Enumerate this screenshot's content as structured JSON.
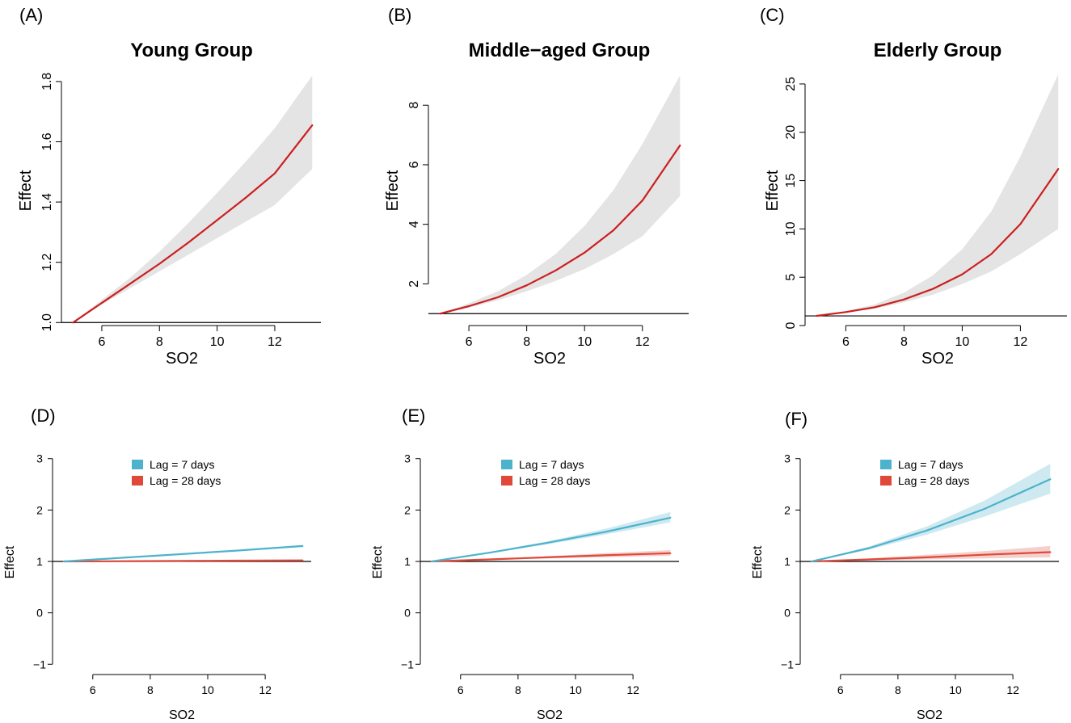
{
  "colors": {
    "effect_line": "#cc1f1f",
    "ci_band": "#e4e4e4",
    "lag7": "#4db3cc",
    "lag7_band": "#cfe9f1",
    "lag28": "#e0483a",
    "lag28_band": "#f4d0cc",
    "reference_line": "#000000"
  },
  "chart_data": [
    {
      "panel": "(A)",
      "type": "line",
      "title": "Young Group",
      "xlabel": "SO2",
      "ylabel": "Effect",
      "xlim": [
        4.6,
        13.6
      ],
      "ylim": [
        0.99,
        1.84
      ],
      "xticks": [
        6,
        8,
        10,
        12
      ],
      "xtick_labels": [
        "6",
        "8",
        "10",
        "12"
      ],
      "yticks": [
        1.0,
        1.2,
        1.4,
        1.6,
        1.8
      ],
      "ytick_labels": [
        "1.0",
        "1.2",
        "1.4",
        "1.6",
        "1.8"
      ],
      "reference_y": 1,
      "series": [
        {
          "name": "Effect",
          "color_key": "effect_line",
          "band_color_key": "ci_band",
          "x": [
            5,
            6,
            7,
            8,
            9,
            10,
            11,
            12,
            13.3
          ],
          "y": [
            1.0,
            1.065,
            1.13,
            1.195,
            1.265,
            1.34,
            1.415,
            1.495,
            1.655
          ],
          "lower": [
            1.0,
            1.06,
            1.115,
            1.17,
            1.225,
            1.28,
            1.335,
            1.39,
            1.51
          ],
          "upper": [
            1.0,
            1.075,
            1.15,
            1.235,
            1.33,
            1.43,
            1.535,
            1.645,
            1.82
          ]
        }
      ]
    },
    {
      "panel": "(B)",
      "type": "line",
      "title": "Middle−aged Group",
      "xlabel": "SO2",
      "ylabel": "Effect",
      "xlim": [
        4.6,
        13.6
      ],
      "ylim": [
        0.6,
        9.2
      ],
      "xticks": [
        6,
        8,
        10,
        12
      ],
      "xtick_labels": [
        "6",
        "8",
        "10",
        "12"
      ],
      "yticks": [
        2,
        4,
        6,
        8
      ],
      "ytick_labels": [
        "2",
        "4",
        "6",
        "8"
      ],
      "reference_y": 1,
      "series": [
        {
          "name": "Effect",
          "color_key": "effect_line",
          "band_color_key": "ci_band",
          "x": [
            5,
            6,
            7,
            8,
            9,
            10,
            11,
            12,
            13.3
          ],
          "y": [
            1.0,
            1.25,
            1.55,
            1.95,
            2.45,
            3.05,
            3.8,
            4.8,
            6.65
          ],
          "lower": [
            1.0,
            1.2,
            1.45,
            1.75,
            2.1,
            2.5,
            3.0,
            3.6,
            4.95
          ],
          "upper": [
            1.0,
            1.35,
            1.75,
            2.3,
            3.0,
            3.95,
            5.15,
            6.7,
            9.0
          ]
        }
      ]
    },
    {
      "panel": "(C)",
      "type": "line",
      "title": "Elderly Group",
      "xlabel": "SO2",
      "ylabel": "Effect",
      "xlim": [
        4.6,
        13.6
      ],
      "ylim": [
        0,
        26.5
      ],
      "xticks": [
        6,
        8,
        10,
        12
      ],
      "xtick_labels": [
        "6",
        "8",
        "10",
        "12"
      ],
      "yticks": [
        0,
        5,
        10,
        15,
        20,
        25
      ],
      "ytick_labels": [
        "0",
        "5",
        "10",
        "15",
        "20",
        "25"
      ],
      "reference_y": 1,
      "series": [
        {
          "name": "Effect",
          "color_key": "effect_line",
          "band_color_key": "ci_band",
          "x": [
            5,
            6,
            7,
            8,
            9,
            10,
            11,
            12,
            13.3
          ],
          "y": [
            1.0,
            1.4,
            1.9,
            2.7,
            3.8,
            5.3,
            7.4,
            10.5,
            16.2
          ],
          "lower": [
            1.0,
            1.35,
            1.75,
            2.4,
            3.2,
            4.3,
            5.6,
            7.4,
            10.0
          ],
          "upper": [
            1.0,
            1.5,
            2.2,
            3.4,
            5.2,
            7.9,
            11.8,
            17.5,
            26.0
          ]
        }
      ]
    },
    {
      "panel": "(D)",
      "type": "line",
      "title": "",
      "xlabel": "SO2",
      "ylabel": "Effect",
      "xlim": [
        4.6,
        13.6
      ],
      "ylim": [
        -1.2,
        3.2
      ],
      "xticks": [
        6,
        8,
        10,
        12
      ],
      "xtick_labels": [
        "6",
        "8",
        "10",
        "12"
      ],
      "yticks": [
        -1,
        0,
        1,
        2,
        3
      ],
      "ytick_labels": [
        "−1",
        "0",
        "1",
        "2",
        "3"
      ],
      "reference_y": 1,
      "legend": {
        "position": "top-center",
        "entries": [
          "Lag = 7 days",
          "Lag = 28 days"
        ]
      },
      "series": [
        {
          "name": "Lag = 7 days",
          "color_key": "lag7",
          "band_color_key": "lag7_band",
          "x": [
            5,
            7,
            9,
            11,
            13.3
          ],
          "y": [
            1.0,
            1.07,
            1.14,
            1.21,
            1.3
          ],
          "lower": [
            1.0,
            1.065,
            1.13,
            1.2,
            1.28
          ],
          "upper": [
            1.0,
            1.075,
            1.15,
            1.22,
            1.32
          ]
        },
        {
          "name": "Lag = 28 days",
          "color_key": "lag28",
          "band_color_key": "lag28_band",
          "x": [
            5,
            7,
            9,
            11,
            13.3
          ],
          "y": [
            1.0,
            1.005,
            1.01,
            1.015,
            1.02
          ],
          "lower": [
            1.0,
            1.0,
            1.0,
            1.005,
            1.005
          ],
          "upper": [
            1.0,
            1.01,
            1.02,
            1.025,
            1.035
          ]
        }
      ]
    },
    {
      "panel": "(E)",
      "type": "line",
      "title": "",
      "xlabel": "SO2",
      "ylabel": "Effect",
      "xlim": [
        4.6,
        13.6
      ],
      "ylim": [
        -1.2,
        3.2
      ],
      "xticks": [
        6,
        8,
        10,
        12
      ],
      "xtick_labels": [
        "6",
        "8",
        "10",
        "12"
      ],
      "yticks": [
        -1,
        0,
        1,
        2,
        3
      ],
      "ytick_labels": [
        "−1",
        "0",
        "1",
        "2",
        "3"
      ],
      "reference_y": 1,
      "legend": {
        "position": "top-center",
        "entries": [
          "Lag = 7 days",
          "Lag = 28 days"
        ]
      },
      "series": [
        {
          "name": "Lag = 7 days",
          "color_key": "lag7",
          "band_color_key": "lag7_band",
          "x": [
            5,
            7,
            9,
            11,
            13.3
          ],
          "y": [
            1.0,
            1.17,
            1.36,
            1.57,
            1.85
          ],
          "lower": [
            1.0,
            1.16,
            1.33,
            1.52,
            1.76
          ],
          "upper": [
            1.0,
            1.18,
            1.39,
            1.63,
            1.96
          ]
        },
        {
          "name": "Lag = 28 days",
          "color_key": "lag28",
          "band_color_key": "lag28_band",
          "x": [
            5,
            7,
            9,
            11,
            13.3
          ],
          "y": [
            1.0,
            1.04,
            1.08,
            1.12,
            1.16
          ],
          "lower": [
            1.0,
            1.03,
            1.06,
            1.08,
            1.11
          ],
          "upper": [
            1.0,
            1.05,
            1.1,
            1.16,
            1.22
          ]
        }
      ]
    },
    {
      "panel": "(F)",
      "type": "line",
      "title": "",
      "xlabel": "SO2",
      "ylabel": "Effect",
      "xlim": [
        4.6,
        13.6
      ],
      "ylim": [
        -1.2,
        3.2
      ],
      "xticks": [
        6,
        8,
        10,
        12
      ],
      "xtick_labels": [
        "6",
        "8",
        "10",
        "12"
      ],
      "yticks": [
        -1,
        0,
        1,
        2,
        3
      ],
      "ytick_labels": [
        "−1",
        "0",
        "1",
        "2",
        "3"
      ],
      "reference_y": 1,
      "legend": {
        "position": "top-center",
        "entries": [
          "Lag = 7 days",
          "Lag = 28 days"
        ]
      },
      "series": [
        {
          "name": "Lag = 7 days",
          "color_key": "lag7",
          "band_color_key": "lag7_band",
          "x": [
            5,
            7,
            9,
            11,
            13.3
          ],
          "y": [
            1.0,
            1.26,
            1.6,
            2.02,
            2.6
          ],
          "lower": [
            1.0,
            1.23,
            1.52,
            1.87,
            2.32
          ],
          "upper": [
            1.0,
            1.29,
            1.68,
            2.18,
            2.9
          ]
        },
        {
          "name": "Lag = 28 days",
          "color_key": "lag28",
          "band_color_key": "lag28_band",
          "x": [
            5,
            7,
            9,
            11,
            13.3
          ],
          "y": [
            1.0,
            1.04,
            1.08,
            1.13,
            1.18
          ],
          "lower": [
            1.0,
            1.02,
            1.04,
            1.06,
            1.08
          ],
          "upper": [
            1.0,
            1.06,
            1.13,
            1.2,
            1.3
          ]
        }
      ]
    }
  ]
}
